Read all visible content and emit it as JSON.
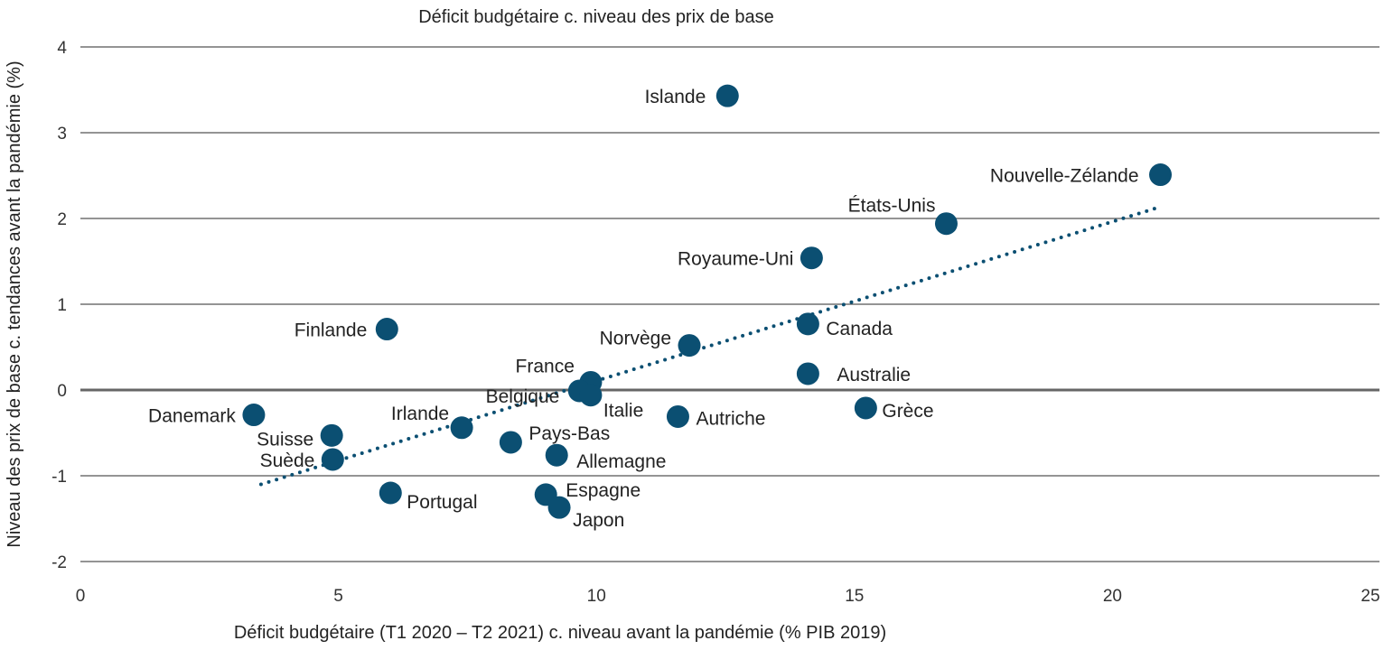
{
  "chart_data": {
    "type": "scatter",
    "title": "Déficit budgétaire c. niveau des prix de base",
    "xlabel": "Déficit budgétaire (T1 2020 – T2 2021) c. niveau avant la pandémie (% PIB 2019)",
    "ylabel": "Niveau des prix de base c. tendances avant la pandémie (%)",
    "xlim": [
      0,
      25
    ],
    "ylim": [
      -2,
      4
    ],
    "xticks": [
      0,
      5,
      10,
      15,
      20,
      25
    ],
    "yticks": [
      -2,
      -1,
      0,
      1,
      2,
      3,
      4
    ],
    "grid": "horizontal",
    "point_color": "#0b4f72",
    "trendline": {
      "style": "dotted",
      "color": "#0b4f72",
      "x": [
        3.5,
        20.9
      ],
      "y": [
        -1.1,
        2.13
      ]
    },
    "points": [
      {
        "label": "Islande",
        "x": 12.54,
        "y": 3.43
      },
      {
        "label": "Nouvelle-Zélande",
        "x": 20.93,
        "y": 2.51
      },
      {
        "label": "États-Unis",
        "x": 16.78,
        "y": 1.94
      },
      {
        "label": "Royaume-Uni",
        "x": 14.17,
        "y": 1.54
      },
      {
        "label": "Canada",
        "x": 14.1,
        "y": 0.77
      },
      {
        "label": "Finlande",
        "x": 5.94,
        "y": 0.71
      },
      {
        "label": "Norvège",
        "x": 11.8,
        "y": 0.52
      },
      {
        "label": "France",
        "x": 9.89,
        "y": 0.09
      },
      {
        "label": "Belgique",
        "x": 9.67,
        "y": -0.01
      },
      {
        "label": "Italie",
        "x": 9.89,
        "y": -0.06
      },
      {
        "label": "Australie",
        "x": 14.1,
        "y": 0.19
      },
      {
        "label": "Grèce",
        "x": 15.22,
        "y": -0.21
      },
      {
        "label": "Danemark",
        "x": 3.36,
        "y": -0.29
      },
      {
        "label": "Autriche",
        "x": 11.58,
        "y": -0.31
      },
      {
        "label": "Irlande",
        "x": 7.39,
        "y": -0.44
      },
      {
        "label": "Suisse",
        "x": 4.87,
        "y": -0.53
      },
      {
        "label": "Pays-Bas",
        "x": 8.34,
        "y": -0.61
      },
      {
        "label": "Allemagne",
        "x": 9.23,
        "y": -0.76
      },
      {
        "label": "Suède",
        "x": 4.89,
        "y": -0.81
      },
      {
        "label": "Portugal",
        "x": 6.01,
        "y": -1.2
      },
      {
        "label": "Espagne",
        "x": 9.02,
        "y": -1.22
      },
      {
        "label": "Japon",
        "x": 9.28,
        "y": -1.37
      }
    ]
  }
}
